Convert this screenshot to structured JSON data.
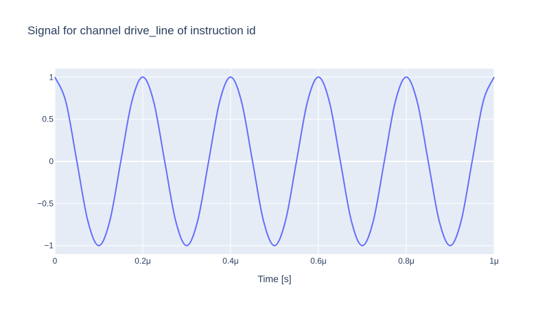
{
  "chart_data": {
    "type": "line",
    "title": "Signal for channel drive_line of instruction id",
    "xlabel": "Time [s]",
    "ylabel": "",
    "xlim": [
      0,
      1e-06
    ],
    "ylim": [
      -1.1,
      1.1
    ],
    "x_ticks": [
      {
        "value": 0,
        "label": "0"
      },
      {
        "value": 2e-07,
        "label": "0.2μ"
      },
      {
        "value": 4e-07,
        "label": "0.4μ"
      },
      {
        "value": 6e-07,
        "label": "0.6μ"
      },
      {
        "value": 8e-07,
        "label": "0.8μ"
      },
      {
        "value": 1e-06,
        "label": "1μ"
      }
    ],
    "y_ticks": [
      {
        "value": 1,
        "label": "1"
      },
      {
        "value": 0.5,
        "label": "0.5"
      },
      {
        "value": 0,
        "label": "0"
      },
      {
        "value": -0.5,
        "label": "−0.5"
      },
      {
        "value": -1,
        "label": "−1"
      }
    ],
    "grid": true,
    "background_color": "#e5ecf6",
    "series": [
      {
        "color": "#636efa",
        "x": [
          0,
          2.5e-08,
          5e-08,
          7.5e-08,
          1e-07,
          1.25e-07,
          1.5e-07,
          1.75e-07,
          2e-07,
          2.25e-07,
          2.5e-07,
          2.75e-07,
          3e-07,
          3.25e-07,
          3.5e-07,
          3.75e-07,
          4e-07,
          4.25e-07,
          4.5e-07,
          4.75e-07,
          5e-07,
          5.25e-07,
          5.5e-07,
          5.75e-07,
          6e-07,
          6.25e-07,
          6.5e-07,
          6.75e-07,
          7e-07,
          7.25e-07,
          7.5e-07,
          7.75e-07,
          8e-07,
          8.25e-07,
          8.5e-07,
          8.75e-07,
          9e-07,
          9.25e-07,
          9.5e-07,
          9.75e-07,
          1e-06
        ],
        "y": [
          1,
          0.707,
          0,
          -0.707,
          -1,
          -0.707,
          0,
          0.707,
          1,
          0.707,
          0,
          -0.707,
          -1,
          -0.707,
          0,
          0.707,
          1,
          0.707,
          0,
          -0.707,
          -1,
          -0.707,
          0,
          0.707,
          1,
          0.707,
          0,
          -0.707,
          -1,
          -0.707,
          0,
          0.707,
          1,
          0.707,
          0,
          -0.707,
          -1,
          -0.707,
          0,
          0.707,
          1
        ]
      }
    ]
  }
}
